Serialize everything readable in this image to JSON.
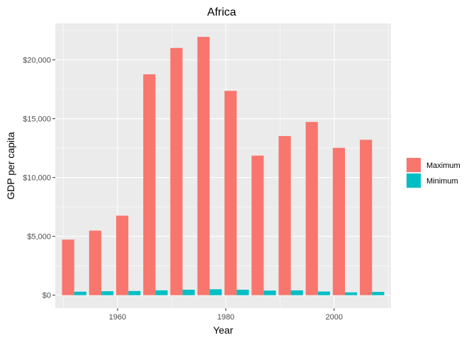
{
  "chart_data": {
    "type": "bar",
    "title": "Africa",
    "xlabel": "Year",
    "ylabel": "GDP per capita",
    "x": [
      1952,
      1957,
      1962,
      1967,
      1972,
      1977,
      1982,
      1987,
      1992,
      1997,
      2002,
      2007
    ],
    "series": [
      {
        "name": "Maximum",
        "color": "#F8766D",
        "values": [
          4725,
          5487,
          6757,
          18773,
          21011,
          21951,
          17364,
          11864,
          13522,
          14723,
          12522,
          13206
        ]
      },
      {
        "name": "Minimum",
        "color": "#00BFC4",
        "values": [
          299,
          336,
          355,
          412,
          464,
          502,
          462,
          389,
          410,
          312,
          241,
          277
        ]
      }
    ],
    "xlim": [
      1948.5,
      2010.5
    ],
    "ylim": [
      -1100,
      23100
    ],
    "x_ticks": [
      1960,
      1980,
      2000
    ],
    "x_tick_labels": [
      "1960",
      "1980",
      "2000"
    ],
    "y_ticks": [
      0,
      5000,
      10000,
      15000,
      20000
    ],
    "y_tick_labels": [
      "$0",
      "$5,000",
      "$10,000",
      "$15,000",
      "$20,000"
    ],
    "grid": true,
    "legend_position": "right",
    "panel_background": "#EBEBEB",
    "grid_color": "#FFFFFF"
  }
}
